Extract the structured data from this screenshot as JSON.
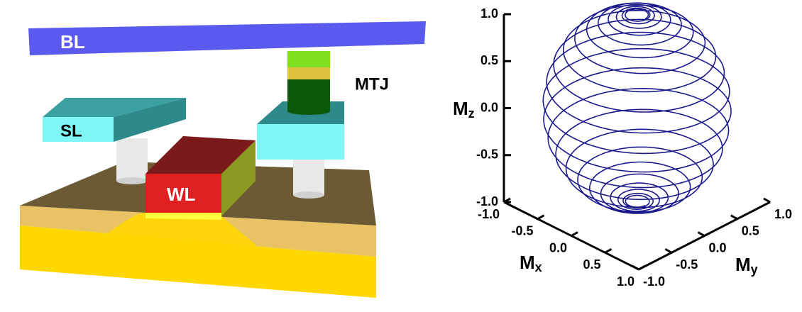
{
  "diagram": {
    "labels": {
      "bl": "BL",
      "sl": "SL",
      "wl": "WL",
      "mtj": "MTJ"
    }
  },
  "plot": {
    "axis_labels": {
      "x": {
        "main": "M",
        "sub": "x"
      },
      "y": {
        "main": "M",
        "sub": "y"
      },
      "z": {
        "main": "M",
        "sub": "z"
      }
    },
    "xlim": [
      -1,
      1
    ],
    "ylim": [
      -1,
      1
    ],
    "zlim": [
      -1,
      1
    ],
    "xticks": [
      {
        "value": -1,
        "label": "-1.0"
      },
      {
        "value": -0.5,
        "label": "-0.5"
      },
      {
        "value": 0,
        "label": "0.0"
      },
      {
        "value": 0.5,
        "label": "0.5"
      },
      {
        "value": 1,
        "label": "1.0"
      }
    ],
    "yticks": [
      {
        "value": -1,
        "label": "-1.0"
      },
      {
        "value": -0.5,
        "label": "-0.5"
      },
      {
        "value": 0,
        "label": "0.0"
      },
      {
        "value": 0.5,
        "label": "0.5"
      },
      {
        "value": 1,
        "label": "1.0"
      }
    ],
    "zticks": [
      {
        "value": -1,
        "label": "-1.0"
      },
      {
        "value": -0.5,
        "label": "-0.5"
      },
      {
        "value": 0,
        "label": "0.0"
      },
      {
        "value": 0.5,
        "label": "0.5"
      },
      {
        "value": 1,
        "label": "1.0"
      }
    ],
    "color": "#1a1a8c"
  }
}
